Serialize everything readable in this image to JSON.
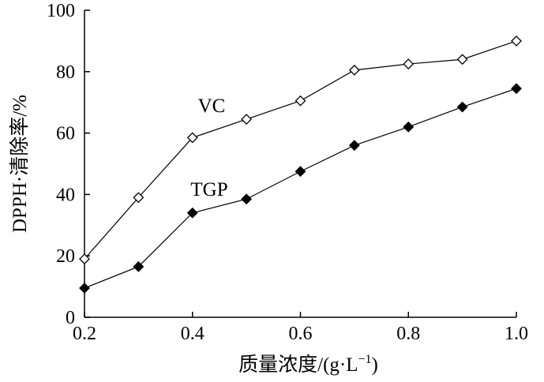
{
  "chart_data": {
    "type": "line",
    "title": "",
    "xlabel": "质量浓度/(g·L",
    "xlabel_superscript": "−1",
    "xlabel_suffix": ")",
    "ylabel": "DPPH·清除率/%",
    "xlim": [
      0.2,
      1.0
    ],
    "ylim": [
      0,
      100
    ],
    "xticks": [
      0.2,
      0.4,
      0.6,
      0.8,
      1.0
    ],
    "xtick_labels": [
      "0.2",
      "0.4",
      "0.6",
      "0.8",
      "1.0"
    ],
    "yticks": [
      0,
      20,
      40,
      60,
      80,
      100
    ],
    "ytick_labels": [
      "0",
      "20",
      "40",
      "60",
      "80",
      "100"
    ],
    "grid": false,
    "x": [
      0.2,
      0.3,
      0.4,
      0.5,
      0.6,
      0.7,
      0.8,
      0.9,
      1.0
    ],
    "series": [
      {
        "name": "VC",
        "marker": "open-diamond",
        "values": [
          19,
          39,
          58.5,
          64.5,
          70.5,
          80.5,
          82.5,
          84,
          90
        ]
      },
      {
        "name": "TGP",
        "marker": "filled-diamond",
        "values": [
          9.5,
          16.5,
          34,
          38.5,
          47.5,
          56,
          62,
          68.5,
          74.5
        ]
      }
    ]
  }
}
